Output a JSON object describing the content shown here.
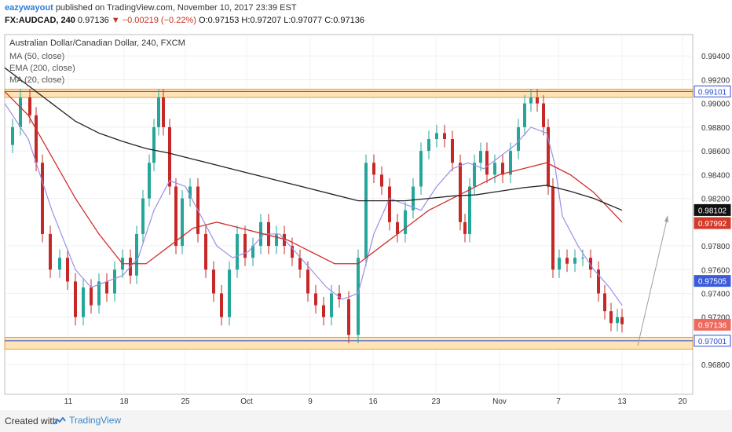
{
  "header": {
    "author": "eazywayout",
    "published_text": "published on TradingView.com, November 10, 2017 23:39 EST",
    "symbol": "FX:AUDCAD, 240",
    "last": "0.97136",
    "change": "▼ −0.00219 (−0.22%)",
    "ohlc": "O:0.97153 H:0.97207 L:0.97077 C:0.97136"
  },
  "chart_data": {
    "type": "line",
    "title": "Australian Dollar/Canadian Dollar, 240, FXCM",
    "legend": [
      "MA (50, close)",
      "EMA (200, close)",
      "MA (20, close)"
    ],
    "legend_placement": "top-left",
    "y_ticks": [
      "0.99400",
      "0.99200",
      "0.99000",
      "0.98800",
      "0.98600",
      "0.98400",
      "0.98200",
      "0.97800",
      "0.97600",
      "0.97400",
      "0.97200",
      "0.96800"
    ],
    "x_ticks": [
      "11",
      "18",
      "25",
      "Oct",
      "9",
      "16",
      "23",
      "Nov",
      "7",
      "13",
      "20"
    ],
    "ylim": [
      0.9655,
      0.9958
    ],
    "grid": true,
    "price_labels": [
      {
        "text": "0.99101",
        "value": 0.99101,
        "color": "#2a4bd1",
        "bg": "#ffffff"
      },
      {
        "text": "0.98102",
        "value": 0.98102,
        "color": "#ffffff",
        "bg": "#111111"
      },
      {
        "text": "0.97992",
        "value": 0.97992,
        "color": "#ffffff",
        "bg": "#d23a2a"
      },
      {
        "text": "0.97505",
        "value": 0.97505,
        "color": "#ffffff",
        "bg": "#3b5bdb"
      },
      {
        "text": "0.97136",
        "value": 0.97136,
        "color": "#ffffff",
        "bg": "#ef6a5e"
      },
      {
        "text": "0.97001",
        "value": 0.97001,
        "color": "#2a4bd1",
        "bg": "#ffffff"
      }
    ],
    "zones": [
      {
        "from": 0.9905,
        "to": 0.9912
      },
      {
        "from": 0.9693,
        "to": 0.9703
      }
    ],
    "price_series": {
      "x": [
        0,
        10,
        20,
        32,
        40,
        48,
        58,
        70,
        80,
        90,
        100,
        110,
        120,
        130,
        140,
        150,
        160,
        168,
        176,
        184,
        190,
        196,
        202,
        210,
        218,
        226,
        236,
        246,
        256,
        266,
        276,
        286,
        296,
        306,
        316,
        326,
        336,
        346,
        356,
        366,
        376,
        386,
        396,
        406,
        416,
        426,
        438,
        450,
        460,
        470,
        480,
        490,
        500,
        510,
        520,
        530,
        540,
        550,
        560,
        570,
        580,
        586,
        592,
        598,
        606,
        614,
        624,
        634,
        644,
        654,
        662,
        670,
        678,
        686,
        692,
        698,
        706,
        716,
        726,
        736,
        746,
        756,
        764,
        772,
        780,
        786
      ],
      "y": [
        0.9865,
        0.988,
        0.9905,
        0.989,
        0.985,
        0.979,
        0.976,
        0.977,
        0.975,
        0.972,
        0.9745,
        0.973,
        0.975,
        0.974,
        0.976,
        0.977,
        0.9755,
        0.979,
        0.982,
        0.985,
        0.988,
        0.9905,
        0.988,
        0.983,
        0.978,
        0.982,
        0.983,
        0.979,
        0.976,
        0.974,
        0.972,
        0.976,
        0.979,
        0.977,
        0.978,
        0.98,
        0.978,
        0.979,
        0.978,
        0.977,
        0.976,
        0.974,
        0.973,
        0.972,
        0.974,
        0.9735,
        0.9705,
        0.977,
        0.985,
        0.984,
        0.983,
        0.98,
        0.979,
        0.981,
        0.983,
        0.986,
        0.987,
        0.9875,
        0.987,
        0.985,
        0.98,
        0.979,
        0.983,
        0.985,
        0.986,
        0.984,
        0.985,
        0.984,
        0.986,
        0.988,
        0.99,
        0.9905,
        0.99,
        0.988,
        0.983,
        0.976,
        0.977,
        0.9765,
        0.977,
        0.977,
        0.976,
        0.974,
        0.9725,
        0.9715,
        0.972,
        0.9714
      ]
    },
    "ma50_series": {
      "x": [
        0,
        30,
        60,
        90,
        120,
        150,
        180,
        210,
        240,
        270,
        300,
        330,
        360,
        390,
        420,
        450,
        480,
        510,
        540,
        570,
        600,
        630,
        660,
        690,
        720,
        750,
        786
      ],
      "y": [
        0.991,
        0.989,
        0.9855,
        0.982,
        0.979,
        0.9765,
        0.9765,
        0.978,
        0.9795,
        0.98,
        0.9795,
        0.979,
        0.9785,
        0.9775,
        0.9765,
        0.9765,
        0.978,
        0.9795,
        0.981,
        0.982,
        0.983,
        0.984,
        0.9845,
        0.985,
        0.984,
        0.9825,
        0.98
      ]
    },
    "ema200_series": {
      "x": [
        0,
        30,
        60,
        90,
        120,
        150,
        180,
        210,
        240,
        270,
        300,
        330,
        360,
        390,
        420,
        450,
        480,
        510,
        540,
        570,
        600,
        630,
        660,
        690,
        720,
        750,
        786
      ],
      "y": [
        0.993,
        0.9915,
        0.99,
        0.9885,
        0.9875,
        0.9868,
        0.9862,
        0.9858,
        0.9853,
        0.9848,
        0.9843,
        0.9838,
        0.9833,
        0.9828,
        0.9823,
        0.9818,
        0.9818,
        0.9818,
        0.982,
        0.9822,
        0.9823,
        0.9826,
        0.9829,
        0.9831,
        0.9826,
        0.982,
        0.981
      ]
    },
    "ma20_series": {
      "x": [
        0,
        30,
        60,
        90,
        110,
        130,
        150,
        170,
        190,
        210,
        230,
        250,
        270,
        290,
        310,
        330,
        350,
        370,
        390,
        410,
        430,
        450,
        470,
        490,
        510,
        530,
        550,
        570,
        590,
        610,
        630,
        650,
        670,
        690,
        700,
        710,
        730,
        750,
        770,
        786
      ],
      "y": [
        0.99,
        0.987,
        0.981,
        0.976,
        0.9745,
        0.975,
        0.9755,
        0.977,
        0.981,
        0.9835,
        0.983,
        0.9805,
        0.978,
        0.977,
        0.9775,
        0.979,
        0.979,
        0.9775,
        0.976,
        0.9745,
        0.9735,
        0.974,
        0.979,
        0.982,
        0.9815,
        0.981,
        0.983,
        0.9845,
        0.985,
        0.9845,
        0.9855,
        0.9865,
        0.988,
        0.9875,
        0.985,
        0.9805,
        0.978,
        0.976,
        0.9745,
        0.973
      ]
    }
  },
  "footer": {
    "created": "Created with",
    "brand": "TradingView"
  }
}
